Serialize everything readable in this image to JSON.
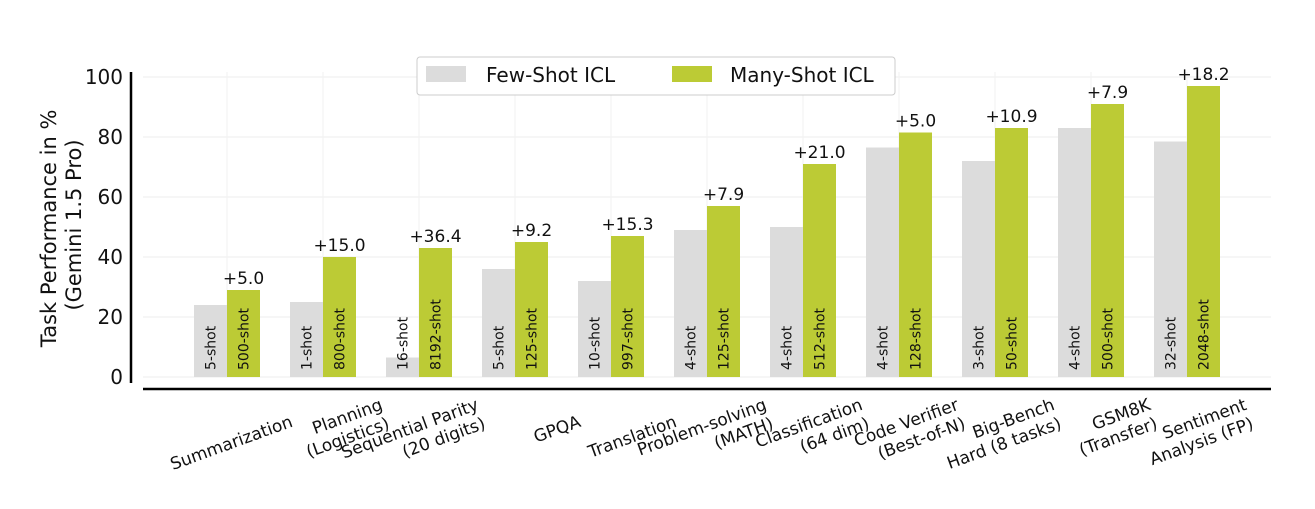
{
  "chart_data": {
    "type": "bar",
    "ylabel_lines": [
      "Task Performance in %",
      "(Gemini 1.5 Pro)"
    ],
    "ylim": [
      0,
      100
    ],
    "yticks": [
      0,
      20,
      40,
      60,
      80,
      100
    ],
    "grid": true,
    "legend_position": "top-center",
    "categories": [
      [
        "Summarization"
      ],
      [
        "Planning",
        "(Logistics)"
      ],
      [
        "Sequential Parity",
        "(20 digits)"
      ],
      [
        "GPQA"
      ],
      [
        "Translation"
      ],
      [
        "Problem-solving",
        "(MATH)"
      ],
      [
        "Classification",
        "(64 dim)"
      ],
      [
        "Code Verifier",
        "(Best-of-N)"
      ],
      [
        "Big-Bench",
        "Hard (8 tasks)"
      ],
      [
        "GSM8K",
        "(Transfer)"
      ],
      [
        "Sentiment",
        "Analysis (FP)"
      ]
    ],
    "series": [
      {
        "name": "Few-Shot ICL",
        "color": "#dcdcdc",
        "values": [
          24,
          25,
          6.5,
          36,
          32,
          49,
          50,
          76.5,
          72,
          83,
          78.5
        ],
        "shot_labels": [
          "5-shot",
          "1-shot",
          "16-shot",
          "5-shot",
          "10-shot",
          "4-shot",
          "4-shot",
          "4-shot",
          "3-shot",
          "4-shot",
          "32-shot"
        ]
      },
      {
        "name": "Many-Shot ICL",
        "color": "#bccb35",
        "values": [
          29,
          40,
          43,
          45,
          47,
          57,
          71,
          81.5,
          83,
          91,
          97
        ],
        "shot_labels": [
          "500-shot",
          "800-shot",
          "8192-shot",
          "125-shot",
          "997-shot",
          "125-shot",
          "512-shot",
          "128-shot",
          "50-shot",
          "500-shot",
          "2048-shot"
        ]
      }
    ],
    "deltas": [
      "+5.0",
      "+15.0",
      "+36.4",
      "+9.2",
      "+15.3",
      "+7.9",
      "+21.0",
      "+5.0",
      "+10.9",
      "+7.9",
      "+18.2"
    ]
  }
}
